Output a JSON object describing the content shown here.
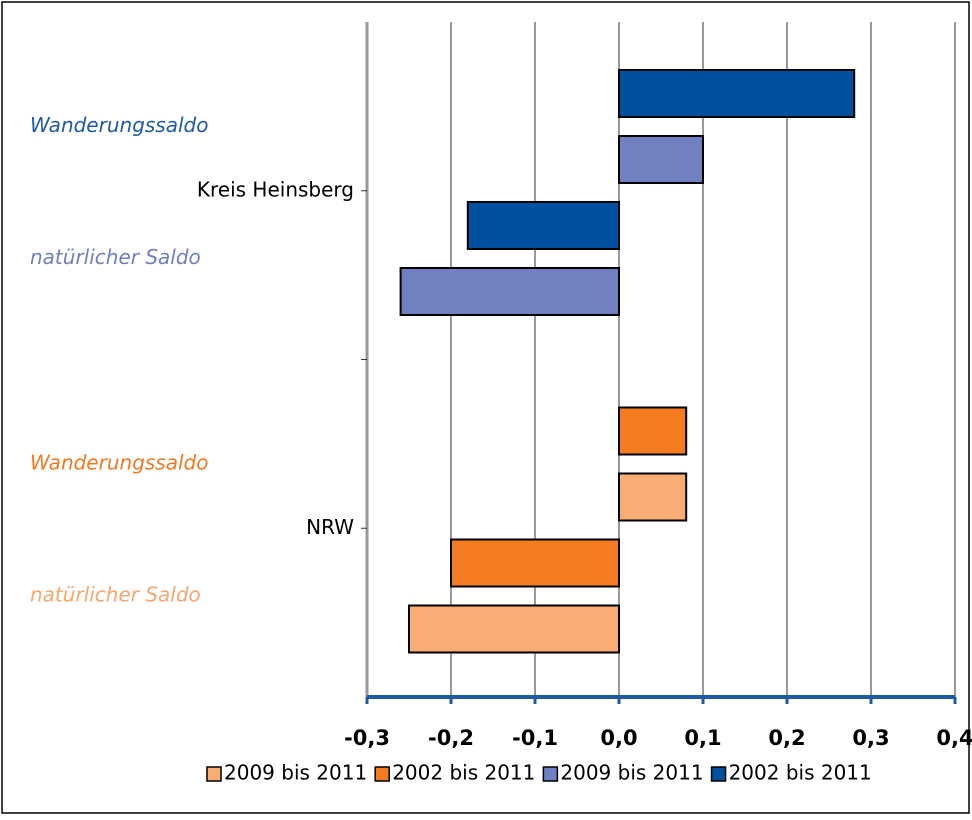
{
  "chart_data": {
    "type": "hbar",
    "groups": [
      "Kreis Heinsberg",
      "NRW"
    ],
    "categories": [
      "Wanderungssaldo",
      "natürlicher Saldo",
      "Wanderungssaldo",
      "natürlicher Saldo"
    ],
    "category_colors": [
      "#1f5aa6",
      "#6f7fc0",
      "#f07a22",
      "#f4a870"
    ],
    "series": [
      {
        "name": "2009 bis 2011",
        "color": "#f9ac74",
        "values": [
          null,
          null,
          0.08,
          -0.25
        ]
      },
      {
        "name": "2002 bis 2011",
        "color": "#f47b20",
        "values": [
          null,
          null,
          0.08,
          -0.2
        ]
      },
      {
        "name": "2009 bis 2011",
        "color": "#7080c0",
        "values": [
          0.1,
          -0.26,
          null,
          null
        ]
      },
      {
        "name": "2002 bis 2011",
        "color": "#0050a0",
        "values": [
          0.28,
          -0.18,
          null,
          null
        ]
      }
    ],
    "xlim": [
      -0.3,
      0.4
    ],
    "xticks": [
      {
        "value": -0.3,
        "label": "-0,3"
      },
      {
        "value": -0.2,
        "label": "-0,2"
      },
      {
        "value": -0.1,
        "label": "-0,1"
      },
      {
        "value": 0,
        "label": "0,0"
      },
      {
        "value": 0.1,
        "label": "0,1"
      },
      {
        "value": 0.2,
        "label": "0,2"
      },
      {
        "value": 0.3,
        "label": "0,3"
      },
      {
        "value": 0.4,
        "label": "0,4"
      }
    ],
    "grid": true,
    "legend": "bottom"
  }
}
